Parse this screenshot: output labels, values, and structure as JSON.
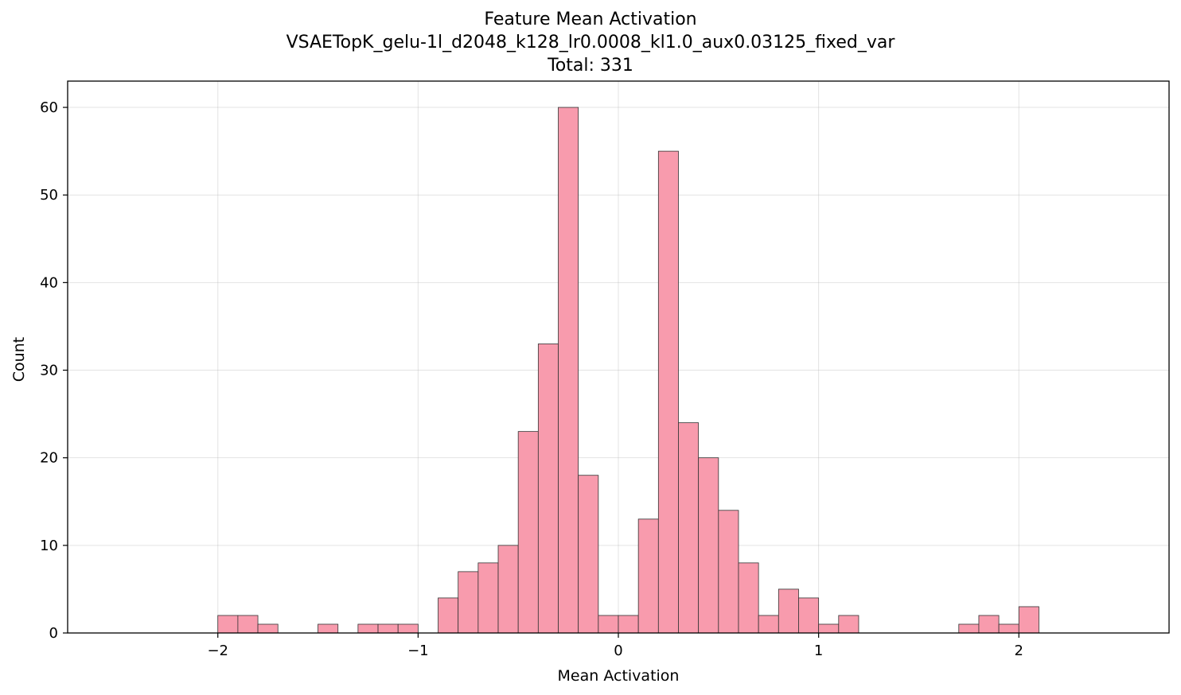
{
  "chart_data": {
    "type": "bar",
    "title": "Feature Mean Activation",
    "subtitle": "VSAETopK_gelu-1l_d2048_k128_lr0.0008_kl1.0_aux0.03125_fixed_var",
    "total_label": "Total: 331",
    "xlabel": "Mean Activation",
    "ylabel": "Count",
    "xlim": [
      -2.75,
      2.75
    ],
    "ylim": [
      0,
      63
    ],
    "grid": true,
    "bar_color": "#f89bad",
    "edge_color": "#333333",
    "bin_width": 0.1,
    "x_ticks": [
      {
        "value": -2,
        "label": "−2"
      },
      {
        "value": -1,
        "label": "−1"
      },
      {
        "value": 0,
        "label": "0"
      },
      {
        "value": 1,
        "label": "1"
      },
      {
        "value": 2,
        "label": "2"
      }
    ],
    "y_ticks": [
      {
        "value": 0,
        "label": "0"
      },
      {
        "value": 10,
        "label": "10"
      },
      {
        "value": 20,
        "label": "20"
      },
      {
        "value": 30,
        "label": "30"
      },
      {
        "value": 40,
        "label": "40"
      },
      {
        "value": 50,
        "label": "50"
      },
      {
        "value": 60,
        "label": "60"
      }
    ],
    "bins": [
      {
        "x0": -2.0,
        "count": 2
      },
      {
        "x0": -1.9,
        "count": 2
      },
      {
        "x0": -1.8,
        "count": 1
      },
      {
        "x0": -1.5,
        "count": 1
      },
      {
        "x0": -1.3,
        "count": 1
      },
      {
        "x0": -1.2,
        "count": 1
      },
      {
        "x0": -1.1,
        "count": 1
      },
      {
        "x0": -0.9,
        "count": 4
      },
      {
        "x0": -0.8,
        "count": 7
      },
      {
        "x0": -0.7,
        "count": 8
      },
      {
        "x0": -0.6,
        "count": 10
      },
      {
        "x0": -0.5,
        "count": 23
      },
      {
        "x0": -0.4,
        "count": 33
      },
      {
        "x0": -0.3,
        "count": 60
      },
      {
        "x0": -0.2,
        "count": 18
      },
      {
        "x0": -0.1,
        "count": 2
      },
      {
        "x0": 0.0,
        "count": 2
      },
      {
        "x0": 0.1,
        "count": 13
      },
      {
        "x0": 0.2,
        "count": 55
      },
      {
        "x0": 0.3,
        "count": 24
      },
      {
        "x0": 0.4,
        "count": 20
      },
      {
        "x0": 0.5,
        "count": 14
      },
      {
        "x0": 0.6,
        "count": 8
      },
      {
        "x0": 0.7,
        "count": 2
      },
      {
        "x0": 0.8,
        "count": 5
      },
      {
        "x0": 0.9,
        "count": 4
      },
      {
        "x0": 1.0,
        "count": 1
      },
      {
        "x0": 1.1,
        "count": 2
      },
      {
        "x0": 1.7,
        "count": 1
      },
      {
        "x0": 1.8,
        "count": 2
      },
      {
        "x0": 1.9,
        "count": 1
      },
      {
        "x0": 2.0,
        "count": 3
      }
    ]
  }
}
